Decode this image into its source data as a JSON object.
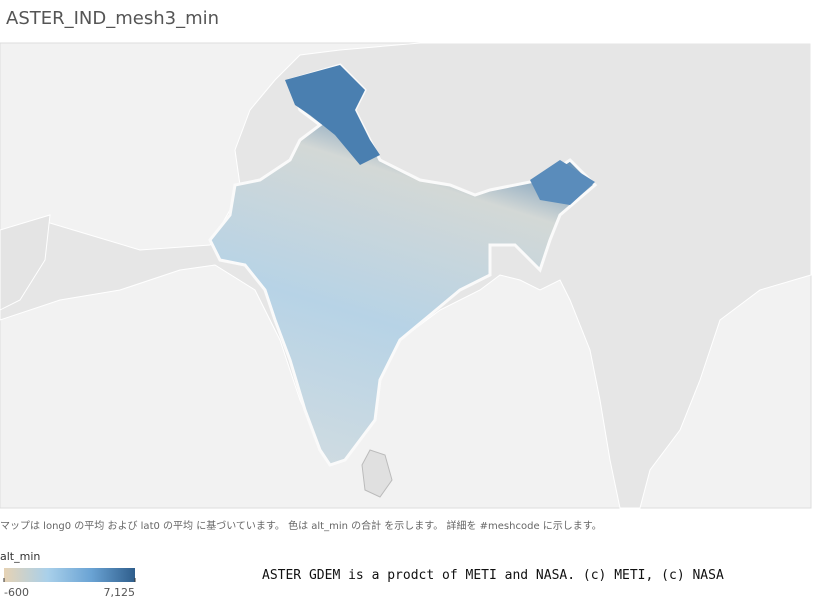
{
  "header": {
    "title": "ASTER_IND_mesh3_min"
  },
  "caption": "マップは long0 の平均 および lat0 の平均 に基づいています。 色は alt_min の合計 を示します。 詳細を #meshcode に示します。",
  "legend": {
    "title": "alt_min",
    "range": [
      -600,
      7125
    ],
    "ticks": [
      -600,
      {
        "value": 7125,
        "label": "7,125"
      }
    ],
    "colors": [
      "#e6d2b4",
      "#a9d0ea",
      "#6aa3d4",
      "#2f5e8c"
    ]
  },
  "credit": "ASTER GDEM is a prodct of METI and NASA. (c) METI, (c) NASA"
}
